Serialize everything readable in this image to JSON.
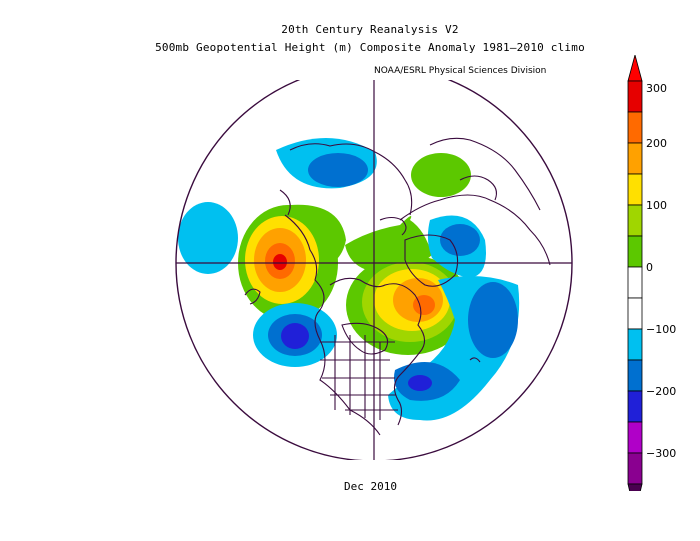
{
  "header": {
    "title_line1": "20th Century Reanalysis V2",
    "title_line2": "500mb Geopotential Height (m) Composite Anomaly 1981–2010 climo",
    "credit": "NOAA/ESRL Physical Sciences Division"
  },
  "footer": {
    "period": "Dec 2010"
  },
  "colorbar": {
    "levels": [
      {
        "label": "300",
        "color": "#e60000"
      },
      {
        "label": "",
        "color": "#ff6a00"
      },
      {
        "label": "200",
        "color": "#ffa100"
      },
      {
        "label": "",
        "color": "#ffe000"
      },
      {
        "label": "100",
        "color": "#a0d600"
      },
      {
        "label": "",
        "color": "#5cc800"
      },
      {
        "label": "0",
        "color": "#ffffff"
      },
      {
        "label": "",
        "color": "#ffffff"
      },
      {
        "label": "-100",
        "color": "#00c0f0"
      },
      {
        "label": "",
        "color": "#0070d0"
      },
      {
        "label": "-200",
        "color": "#2020d8"
      },
      {
        "label": "",
        "color": "#b000c8"
      },
      {
        "label": "-300",
        "color": "#8a0090"
      }
    ],
    "top_cap_color": "#ff0000",
    "bottom_cap_color": "#4a0050",
    "ticks": [
      "300",
      "200",
      "100",
      "0",
      "−100",
      "−200",
      "−300"
    ]
  },
  "map": {
    "projection": "north polar stereographic",
    "outline_color": "#3a0b3e"
  }
}
